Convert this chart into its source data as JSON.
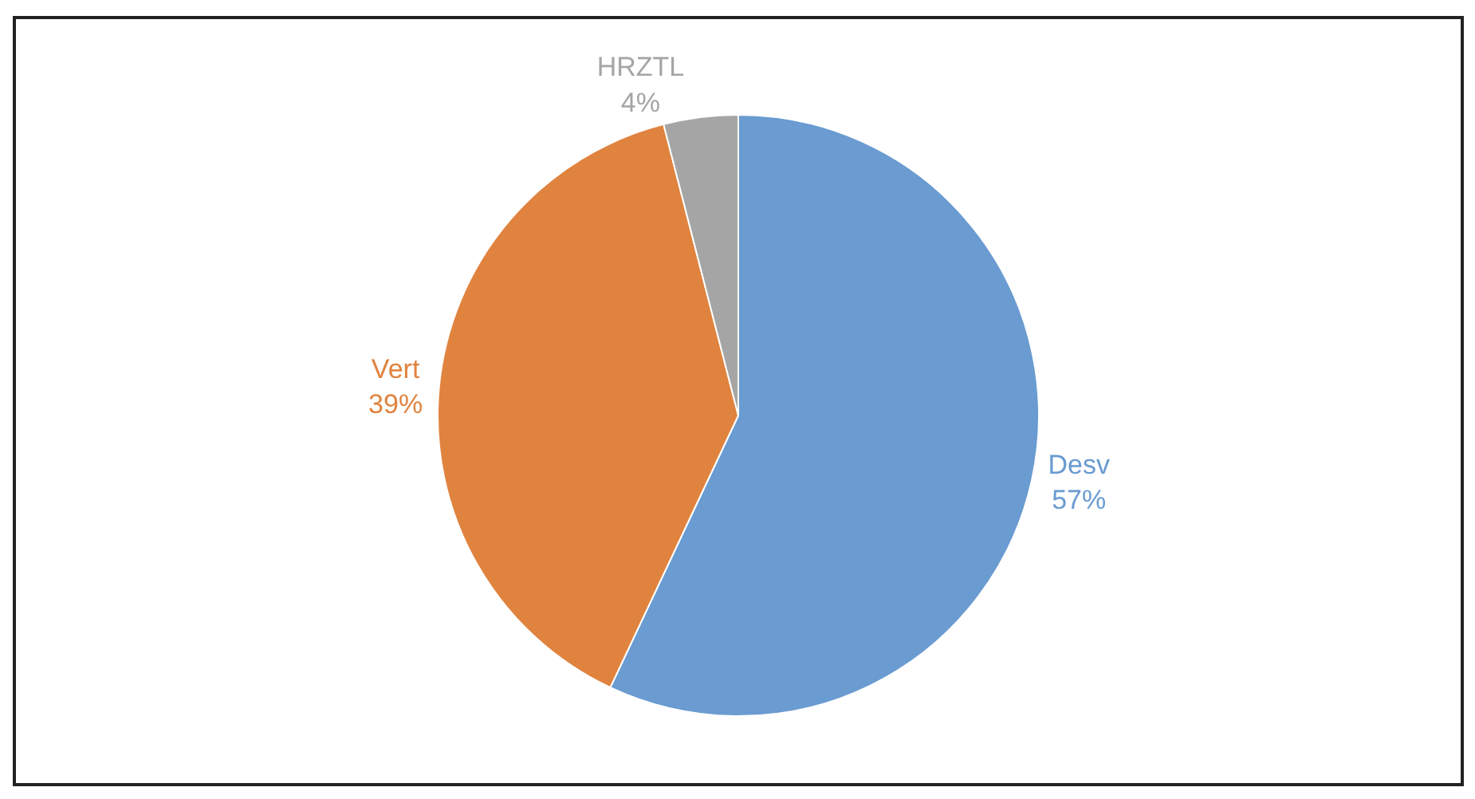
{
  "chart_data": {
    "type": "pie",
    "categories": [
      "Desv",
      "Vert",
      "HRZTL"
    ],
    "values": [
      57,
      39,
      4
    ],
    "value_labels": [
      "57%",
      "39%",
      "4%"
    ],
    "colors": [
      "#6a9bd1",
      "#e0833f",
      "#a5a5a5"
    ],
    "legend": false
  }
}
